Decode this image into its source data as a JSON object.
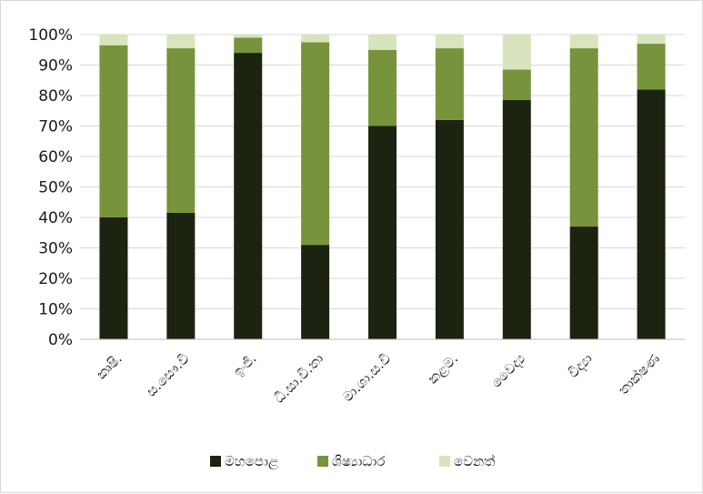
{
  "chart_data": {
    "type": "bar",
    "stacked": true,
    "percent": true,
    "categories": [
      "කෘෂි.",
      "ස.සෞ.වි",
      "ඉංජි.",
      "ධී.සා.වි.තා",
      "මා.ශා.ස.වි",
      "කළම.",
      "වෛද්‍ය",
      "විද්‍යා",
      "තාක්ෂණ"
    ],
    "series": [
      {
        "name": "මහපොළ",
        "color": "#1c2310",
        "values": [
          40,
          41.5,
          94,
          31,
          70,
          72,
          78.5,
          37,
          82
        ]
      },
      {
        "name": "ශිෂ්‍යාධාර",
        "color": "#77933c",
        "values": [
          56.5,
          54,
          5,
          66.5,
          25,
          23.5,
          10,
          58.5,
          15
        ]
      },
      {
        "name": "වෙනත්",
        "color": "#d7e4bd",
        "values": [
          3.5,
          4.5,
          1,
          2.5,
          5,
          4.5,
          11.5,
          4.5,
          3
        ]
      }
    ],
    "ylim": [
      0,
      100
    ],
    "yticks": [
      "0%",
      "10%",
      "20%",
      "30%",
      "40%",
      "50%",
      "60%",
      "70%",
      "80%",
      "90%",
      "100%"
    ],
    "grid": true,
    "legend_position": "bottom",
    "title": "",
    "xlabel": "",
    "ylabel": ""
  }
}
